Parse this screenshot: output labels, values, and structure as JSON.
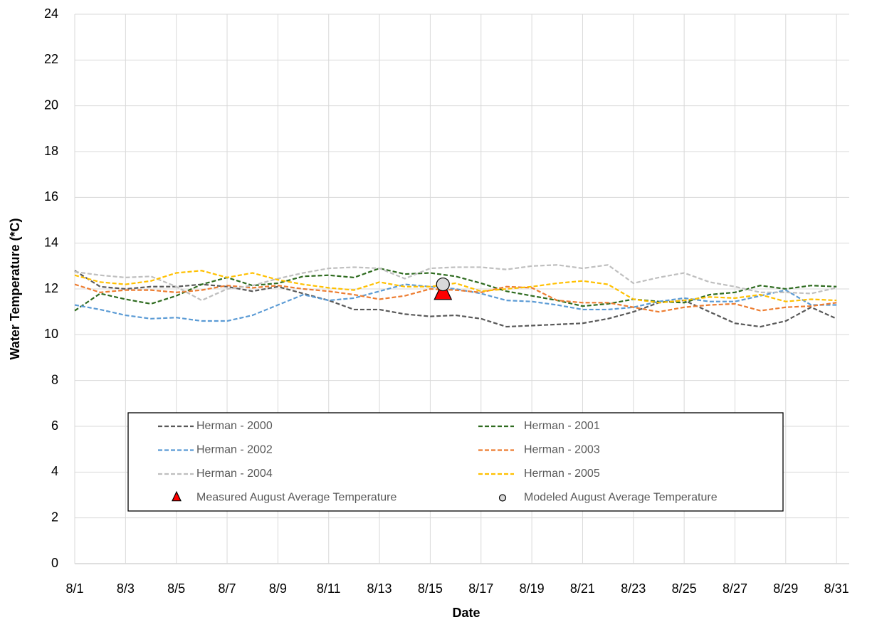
{
  "chart_data": {
    "type": "line",
    "xlabel": "Date",
    "ylabel": "Water Temperature (*C)",
    "x": [
      1,
      2,
      3,
      4,
      5,
      6,
      7,
      8,
      9,
      10,
      11,
      12,
      13,
      14,
      15,
      16,
      17,
      18,
      19,
      20,
      21,
      22,
      23,
      24,
      25,
      26,
      27,
      28,
      29,
      30,
      31
    ],
    "xlim": [
      1,
      31.5
    ],
    "xticks": [
      {
        "value": 1,
        "label": "8/1"
      },
      {
        "value": 3,
        "label": "8/3"
      },
      {
        "value": 5,
        "label": "8/5"
      },
      {
        "value": 7,
        "label": "8/7"
      },
      {
        "value": 9,
        "label": "8/9"
      },
      {
        "value": 11,
        "label": "8/11"
      },
      {
        "value": 13,
        "label": "8/13"
      },
      {
        "value": 15,
        "label": "8/15"
      },
      {
        "value": 17,
        "label": "8/17"
      },
      {
        "value": 19,
        "label": "8/19"
      },
      {
        "value": 21,
        "label": "8/21"
      },
      {
        "value": 23,
        "label": "8/23"
      },
      {
        "value": 25,
        "label": "8/25"
      },
      {
        "value": 27,
        "label": "8/27"
      },
      {
        "value": 29,
        "label": "8/29"
      },
      {
        "value": 31,
        "label": "8/31"
      }
    ],
    "ylim": [
      0,
      24
    ],
    "yticks": [
      0,
      2,
      4,
      6,
      8,
      10,
      12,
      14,
      16,
      18,
      20,
      22,
      24
    ],
    "grid": true,
    "series": [
      {
        "name": "Herman - 2000",
        "color": "#595959",
        "values": [
          12.8,
          12.1,
          12.0,
          12.1,
          12.1,
          12.2,
          12.1,
          11.9,
          12.1,
          11.8,
          11.5,
          11.1,
          11.1,
          10.9,
          10.8,
          10.85,
          10.7,
          10.35,
          10.4,
          10.45,
          10.5,
          10.7,
          11.0,
          11.4,
          11.5,
          11.0,
          10.5,
          10.35,
          10.6,
          11.2,
          10.7
        ]
      },
      {
        "name": "Herman - 2001",
        "color": "#2e6b1f",
        "values": [
          11.05,
          11.8,
          11.55,
          11.35,
          11.7,
          12.2,
          12.5,
          12.15,
          12.25,
          12.55,
          12.6,
          12.5,
          12.9,
          12.65,
          12.7,
          12.55,
          12.25,
          11.9,
          11.7,
          11.5,
          11.25,
          11.35,
          11.55,
          11.45,
          11.4,
          11.75,
          11.85,
          12.15,
          12.0,
          12.15,
          12.1
        ]
      },
      {
        "name": "Herman - 2002",
        "color": "#5b9bd5",
        "values": [
          11.3,
          11.1,
          10.85,
          10.7,
          10.75,
          10.6,
          10.6,
          10.85,
          11.3,
          11.75,
          11.5,
          11.6,
          11.9,
          12.2,
          12.1,
          12.0,
          11.8,
          11.5,
          11.45,
          11.3,
          11.1,
          11.1,
          11.2,
          11.45,
          11.6,
          11.45,
          11.45,
          11.7,
          11.95,
          11.3,
          11.3
        ]
      },
      {
        "name": "Herman - 2003",
        "color": "#ed7d31",
        "values": [
          12.2,
          11.85,
          11.95,
          11.95,
          11.85,
          11.95,
          12.15,
          12.05,
          12.15,
          12.0,
          11.9,
          11.75,
          11.55,
          11.7,
          12.0,
          11.95,
          11.85,
          12.1,
          12.05,
          11.5,
          11.4,
          11.4,
          11.2,
          11.0,
          11.2,
          11.3,
          11.35,
          11.05,
          11.2,
          11.25,
          11.4
        ]
      },
      {
        "name": "Herman - 2004",
        "color": "#bfbfbf",
        "values": [
          12.75,
          12.6,
          12.5,
          12.55,
          12.1,
          11.5,
          12.0,
          12.15,
          12.45,
          12.7,
          12.9,
          12.95,
          12.9,
          12.45,
          12.9,
          12.95,
          12.95,
          12.85,
          13.0,
          13.05,
          12.9,
          13.05,
          12.25,
          12.5,
          12.7,
          12.3,
          12.1,
          11.85,
          11.85,
          11.8,
          12.05
        ]
      },
      {
        "name": "Herman - 2005",
        "color": "#ffc000",
        "values": [
          12.6,
          12.3,
          12.2,
          12.35,
          12.7,
          12.8,
          12.5,
          12.7,
          12.4,
          12.2,
          12.05,
          11.95,
          12.3,
          12.1,
          12.1,
          12.25,
          11.9,
          12.0,
          12.1,
          12.25,
          12.35,
          12.2,
          11.55,
          11.4,
          11.5,
          11.65,
          11.6,
          11.75,
          11.45,
          11.55,
          11.5
        ]
      }
    ],
    "points": [
      {
        "name": "Measured August Average Temperature",
        "color": "#ff0000",
        "marker": "triangle",
        "x": 15.5,
        "y": 11.8
      },
      {
        "name": "Modeled August Average Temperature",
        "color": "#d9d9d9",
        "marker": "circle",
        "x": 15.5,
        "y": 12.2
      }
    ]
  }
}
